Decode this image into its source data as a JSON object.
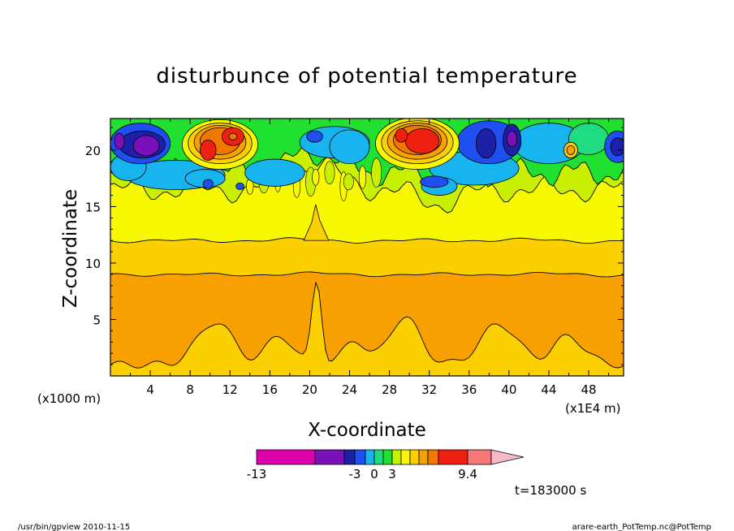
{
  "chart_data": {
    "type": "heatmap",
    "title": "disturbunce of potential temperature",
    "xlabel": "X-coordinate",
    "ylabel": "Z-coordinate",
    "x_units": "(x1E4 m)",
    "y_units": "(x1000 m)",
    "xlim": [
      0,
      51.5
    ],
    "ylim": [
      0,
      22.8
    ],
    "x_ticks": [
      4,
      8,
      12,
      16,
      20,
      24,
      28,
      32,
      36,
      40,
      44,
      48
    ],
    "y_ticks": [
      5,
      10,
      15,
      20
    ],
    "colorbar": {
      "colors": [
        "#dd00aa",
        "#7a10b8",
        "#1c20a8",
        "#1f4ff0",
        "#18b4f0",
        "#20dc80",
        "#20e030",
        "#c8f000",
        "#f8f800",
        "#fcd000",
        "#f8a000",
        "#f07800",
        "#f02010",
        "#f87878",
        "#f8b8c8"
      ],
      "tick_labels": [
        "-13",
        "-3",
        "0",
        "3",
        "9.4"
      ],
      "extend": "max"
    },
    "fields": {
      "band_low": 9,
      "band_mid": 12,
      "band_top": 16.5
    },
    "annotation": "t=183000 s",
    "footer_left": "/usr/bin/gpview   2010-11-15",
    "footer_right": "arare-earth_PotTemp.nc@PotTemp"
  }
}
